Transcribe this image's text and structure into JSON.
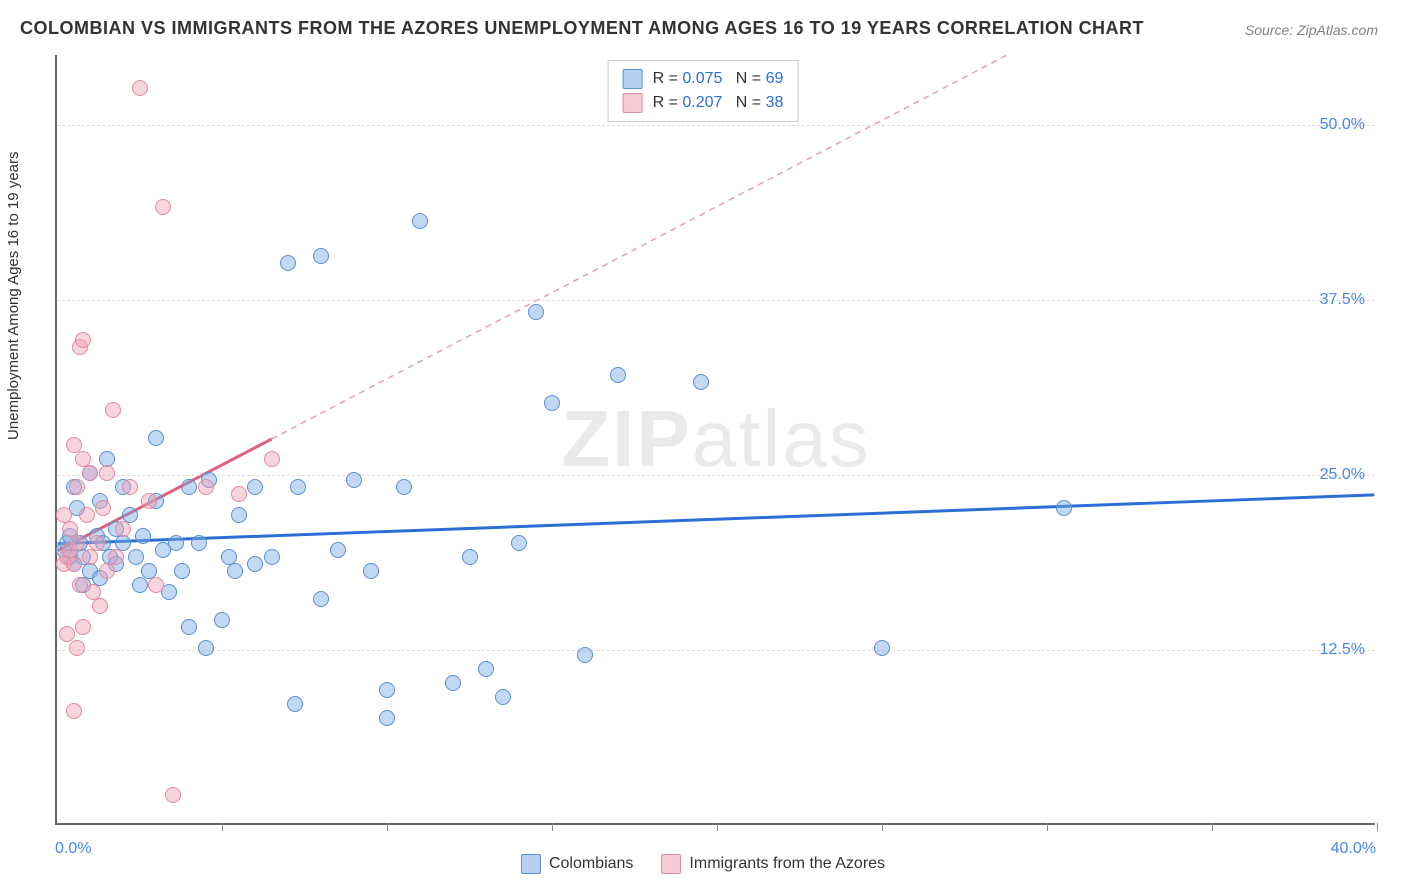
{
  "title": "COLOMBIAN VS IMMIGRANTS FROM THE AZORES UNEMPLOYMENT AMONG AGES 16 TO 19 YEARS CORRELATION CHART",
  "source": "Source: ZipAtlas.com",
  "watermark": {
    "pre": "ZIP",
    "post": "atlas"
  },
  "chart": {
    "type": "scatter",
    "y_axis_label": "Unemployment Among Ages 16 to 19 years",
    "xlim": [
      0,
      40
    ],
    "ylim": [
      0,
      55
    ],
    "x_ticks": [
      0,
      5,
      10,
      15,
      20,
      25,
      30,
      35,
      40
    ],
    "y_ticks": [
      12.5,
      25.0,
      37.5,
      50.0
    ],
    "x_axis_start_label": "0.0%",
    "x_axis_end_label": "40.0%",
    "y_tick_labels": [
      "12.5%",
      "25.0%",
      "37.5%",
      "50.0%"
    ],
    "background_color": "#ffffff",
    "grid_color": "#dddddd",
    "axis_color": "#666666",
    "tick_label_color": "#4a86e8",
    "series": [
      {
        "name": "Colombians",
        "marker_fill": "#78aae6",
        "marker_stroke": "#5a8fd0",
        "marker_size": 16,
        "R": "0.075",
        "N": "69",
        "trend": {
          "x1": 0,
          "y1": 20.0,
          "x2": 40,
          "y2": 23.5,
          "color": "#2b6fd4",
          "width": 3,
          "dashed_extrapolate": false
        },
        "points": [
          [
            0.2,
            19.5
          ],
          [
            0.3,
            20.0
          ],
          [
            0.4,
            19.0
          ],
          [
            0.4,
            20.5
          ],
          [
            0.5,
            18.5
          ],
          [
            0.5,
            24.0
          ],
          [
            0.6,
            22.5
          ],
          [
            0.7,
            20.0
          ],
          [
            0.8,
            19.0
          ],
          [
            0.8,
            17.0
          ],
          [
            1.0,
            18.0
          ],
          [
            1.0,
            25.0
          ],
          [
            1.2,
            20.5
          ],
          [
            1.3,
            23.0
          ],
          [
            1.3,
            17.5
          ],
          [
            1.4,
            20.0
          ],
          [
            1.5,
            26.0
          ],
          [
            1.6,
            19.0
          ],
          [
            1.8,
            21.0
          ],
          [
            1.8,
            18.5
          ],
          [
            2.0,
            20.0
          ],
          [
            2.2,
            22.0
          ],
          [
            2.4,
            19.0
          ],
          [
            2.5,
            17.0
          ],
          [
            2.6,
            20.5
          ],
          [
            2.8,
            18.0
          ],
          [
            3.0,
            27.5
          ],
          [
            3.0,
            23.0
          ],
          [
            3.2,
            19.5
          ],
          [
            3.4,
            16.5
          ],
          [
            3.6,
            20.0
          ],
          [
            3.8,
            18.0
          ],
          [
            4.0,
            24.0
          ],
          [
            4.0,
            14.0
          ],
          [
            4.3,
            20.0
          ],
          [
            4.5,
            12.5
          ],
          [
            4.6,
            24.5
          ],
          [
            5.0,
            14.5
          ],
          [
            5.2,
            19.0
          ],
          [
            5.5,
            22.0
          ],
          [
            6.0,
            18.5
          ],
          [
            6.0,
            24.0
          ],
          [
            6.5,
            19.0
          ],
          [
            7.0,
            40.0
          ],
          [
            7.3,
            24.0
          ],
          [
            5.4,
            18.0
          ],
          [
            8.0,
            40.5
          ],
          [
            8.0,
            16.0
          ],
          [
            8.5,
            19.5
          ],
          [
            9.0,
            24.5
          ],
          [
            9.5,
            18.0
          ],
          [
            10.0,
            7.5
          ],
          [
            10.0,
            9.5
          ],
          [
            10.5,
            24.0
          ],
          [
            11.0,
            43.0
          ],
          [
            12.0,
            10.0
          ],
          [
            12.5,
            19.0
          ],
          [
            13.0,
            11.0
          ],
          [
            13.5,
            9.0
          ],
          [
            14.0,
            20.0
          ],
          [
            14.5,
            36.5
          ],
          [
            15.0,
            30.0
          ],
          [
            16.0,
            12.0
          ],
          [
            17.0,
            32.0
          ],
          [
            19.5,
            31.5
          ],
          [
            25.0,
            12.5
          ],
          [
            30.5,
            22.5
          ],
          [
            7.2,
            8.5
          ],
          [
            2.0,
            24.0
          ]
        ]
      },
      {
        "name": "Immigrants from the Azores",
        "marker_fill": "#f0a0b4",
        "marker_stroke": "#e08aa0",
        "marker_size": 16,
        "R": "0.207",
        "N": "38",
        "trend": {
          "x1": 0,
          "y1": 19.5,
          "x2": 6.5,
          "y2": 27.5,
          "extrapolate_to_x": 40,
          "color": "#e0607f",
          "width": 3,
          "dashed_extrapolate": true,
          "dash_color": "#e8a0b0"
        },
        "points": [
          [
            0.2,
            18.5
          ],
          [
            0.2,
            22.0
          ],
          [
            0.3,
            19.0
          ],
          [
            0.3,
            13.5
          ],
          [
            0.4,
            19.5
          ],
          [
            0.4,
            21.0
          ],
          [
            0.5,
            27.0
          ],
          [
            0.5,
            18.5
          ],
          [
            0.6,
            24.0
          ],
          [
            0.6,
            20.0
          ],
          [
            0.7,
            17.0
          ],
          [
            0.7,
            34.0
          ],
          [
            0.8,
            26.0
          ],
          [
            0.8,
            34.5
          ],
          [
            0.9,
            22.0
          ],
          [
            1.0,
            19.0
          ],
          [
            1.0,
            25.0
          ],
          [
            1.1,
            16.5
          ],
          [
            1.2,
            20.0
          ],
          [
            1.3,
            15.5
          ],
          [
            1.4,
            22.5
          ],
          [
            1.5,
            18.0
          ],
          [
            1.5,
            25.0
          ],
          [
            1.7,
            29.5
          ],
          [
            1.8,
            19.0
          ],
          [
            2.0,
            21.0
          ],
          [
            2.2,
            24.0
          ],
          [
            2.5,
            52.5
          ],
          [
            2.8,
            23.0
          ],
          [
            3.0,
            17.0
          ],
          [
            3.2,
            44.0
          ],
          [
            3.5,
            2.0
          ],
          [
            0.5,
            8.0
          ],
          [
            0.6,
            12.5
          ],
          [
            0.8,
            14.0
          ],
          [
            4.5,
            24.0
          ],
          [
            5.5,
            23.5
          ],
          [
            6.5,
            26.0
          ]
        ]
      }
    ],
    "legend_bottom": {
      "items": [
        "Colombians",
        "Immigrants from the Azores"
      ]
    },
    "legend_top": {
      "r_label": "R =",
      "n_label": "N ="
    }
  }
}
